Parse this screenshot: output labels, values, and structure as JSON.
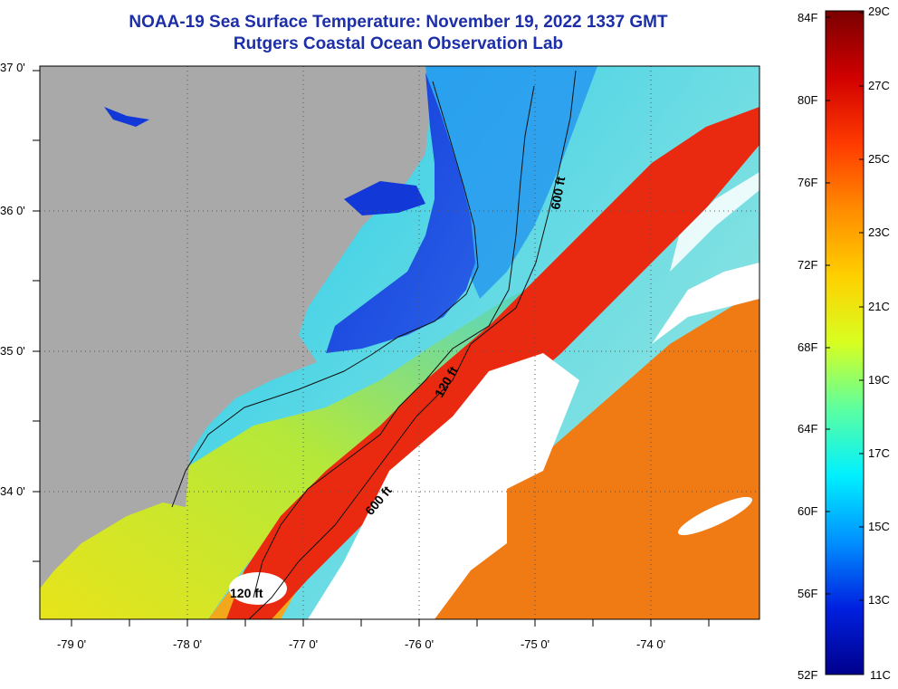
{
  "title": {
    "line1": "NOAA-19 Sea Surface Temperature:  November 19, 2022 1337 GMT",
    "line2": "Rutgers Coastal Ocean Observation Lab"
  },
  "map": {
    "lat_labels": [
      "37 0'",
      "36 0'",
      "35 0'",
      "34 0'"
    ],
    "lon_labels": [
      "-79 0'",
      "-78 0'",
      "-77 0'",
      "-76 0'",
      "-75 0'",
      "-74 0'"
    ],
    "contours": [
      {
        "label": "600 ft"
      },
      {
        "label": "120 ft"
      },
      {
        "label": "600 ft"
      },
      {
        "label": "120 ft"
      }
    ],
    "colors": {
      "land": "#a9a9a9",
      "cloud": "#ffffff",
      "gulf_stream": "#ea2a10",
      "offshore": "#f07a14",
      "nearshore_warm": "#e8e41a",
      "shelf": "#2fc4e8",
      "sound": "#1238d8"
    }
  },
  "colorbar": {
    "f_labels": [
      "84F",
      "80F",
      "76F",
      "72F",
      "68F",
      "64F",
      "60F",
      "56F",
      "52F"
    ],
    "c_labels": [
      "29C",
      "27C",
      "25C",
      "23C",
      "21C",
      "19C",
      "17C",
      "15C",
      "13C",
      "11C"
    ],
    "stops": [
      "#7a0000",
      "#d00000",
      "#ff3a00",
      "#ff8c00",
      "#ffd000",
      "#d8ff20",
      "#5cffa0",
      "#00f0ff",
      "#0090ff",
      "#0020e0",
      "#00008c"
    ]
  }
}
